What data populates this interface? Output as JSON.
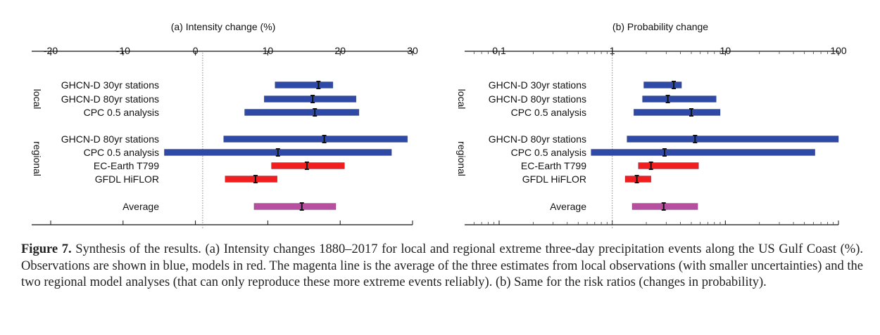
{
  "chart_data": [
    {
      "type": "interval",
      "panel_id": "a",
      "title": "(a) Intensity change (%)",
      "scale": "linear",
      "xlim": [
        -20,
        30
      ],
      "xticks": [
        -20,
        -10,
        0,
        10,
        20,
        30
      ],
      "xtick_labels": [
        "-20",
        "-10",
        "0",
        "10",
        "20",
        "30"
      ],
      "reference_line": 1,
      "groups": [
        "local",
        "regional"
      ],
      "rows": [
        {
          "label": "GHCN-D 30yr stations",
          "group": "local",
          "kind": "observation",
          "low": 11.0,
          "best": 17.0,
          "high": 19.0
        },
        {
          "label": "GHCN-D 80yr stations",
          "group": "local",
          "kind": "observation",
          "low": 9.5,
          "best": 16.2,
          "high": 22.2
        },
        {
          "label": "CPC 0.5 analysis",
          "group": "local",
          "kind": "observation",
          "low": 6.8,
          "best": 16.5,
          "high": 22.6
        },
        {
          "label": "GHCN-D 80yr stations",
          "group": "regional",
          "kind": "observation",
          "low": 3.9,
          "best": 17.8,
          "high": 29.3
        },
        {
          "label": "CPC 0.5 analysis",
          "group": "regional",
          "kind": "observation",
          "low": -4.3,
          "best": 11.4,
          "high": 27.1
        },
        {
          "label": "EC-Earth T799",
          "group": "regional",
          "kind": "model",
          "low": 10.5,
          "best": 15.4,
          "high": 20.6
        },
        {
          "label": "GFDL HiFLOR",
          "group": "regional",
          "kind": "model",
          "low": 4.1,
          "best": 8.3,
          "high": 11.3
        },
        {
          "label": "Average",
          "group": "average",
          "kind": "average",
          "low": 8.1,
          "best": 14.7,
          "high": 19.4
        }
      ]
    },
    {
      "type": "interval",
      "panel_id": "b",
      "title": "(b) Probability change",
      "scale": "log",
      "xlim": [
        0.05,
        100
      ],
      "xticks": [
        0.1,
        1,
        10,
        100
      ],
      "xtick_labels": [
        "0.1",
        "1",
        "10",
        "100"
      ],
      "reference_line": 1,
      "groups": [
        "local",
        "regional"
      ],
      "rows": [
        {
          "label": "GHCN-D 30yr stations",
          "group": "local",
          "kind": "observation",
          "low": 1.9,
          "best": 3.5,
          "high": 4.1
        },
        {
          "label": "GHCN-D 80yr stations",
          "group": "local",
          "kind": "observation",
          "low": 1.85,
          "best": 3.1,
          "high": 8.3
        },
        {
          "label": "CPC 0.5 analysis",
          "group": "local",
          "kind": "observation",
          "low": 1.55,
          "best": 5.0,
          "high": 9.0
        },
        {
          "label": "GHCN-D 80yr stations",
          "group": "regional",
          "kind": "observation",
          "low": 1.35,
          "best": 5.4,
          "high": 100
        },
        {
          "label": "CPC 0.5 analysis",
          "group": "regional",
          "kind": "observation",
          "low": 0.65,
          "best": 2.9,
          "high": 62
        },
        {
          "label": "EC-Earth T799",
          "group": "regional",
          "kind": "model",
          "low": 1.7,
          "best": 2.2,
          "high": 5.8
        },
        {
          "label": "GFDL HiFLOR",
          "group": "regional",
          "kind": "model",
          "low": 1.3,
          "best": 1.65,
          "high": 2.2
        },
        {
          "label": "Average",
          "group": "average",
          "kind": "average",
          "low": 1.5,
          "best": 2.85,
          "high": 5.7
        }
      ]
    }
  ],
  "colors": {
    "observation": "#2f4aa6",
    "model": "#f01e1e",
    "average": "#b84ea0",
    "best_marker": "#111111",
    "axis": "#111111",
    "reference": "#888888"
  },
  "caption": {
    "label": "Figure 7.",
    "text": " Synthesis of the results. (a) Intensity changes 1880–2017 for local and regional extreme three-day precipitation events along the US Gulf Coast (%). Observations are shown in blue, models in red. The magenta line is the average of the three estimates from local observations (with smaller uncertainties) and the two regional model analyses (that can only reproduce these more extreme events reliably). (b) Same for the risk ratios (changes in probability)."
  }
}
